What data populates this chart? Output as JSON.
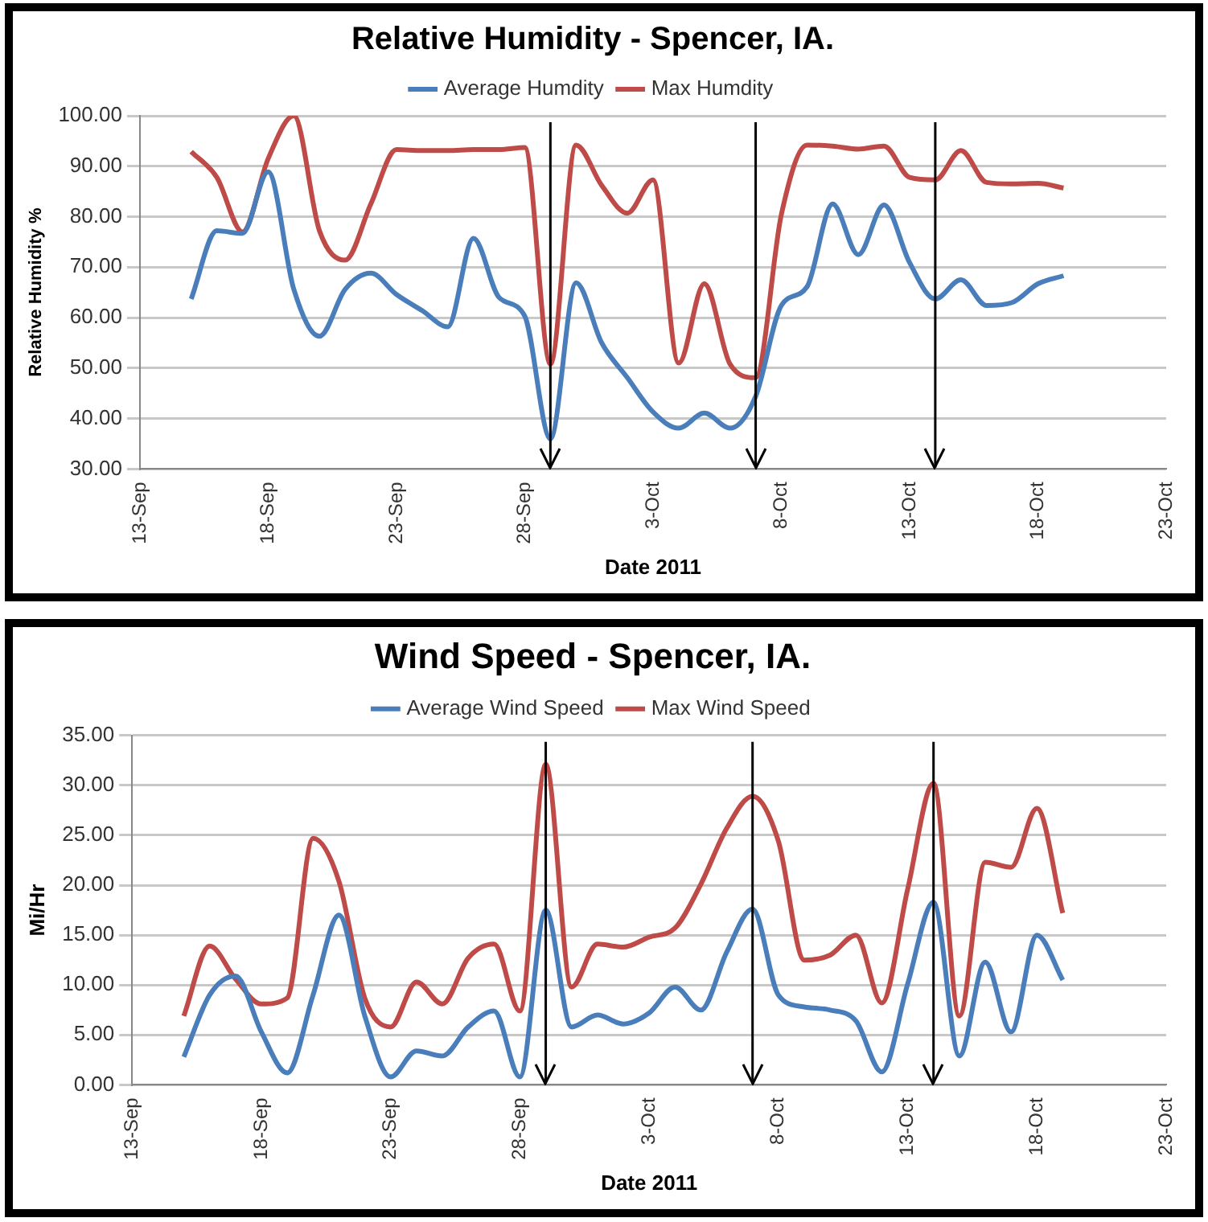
{
  "chart_data": [
    {
      "type": "line",
      "title": "Relative Humidity - Spencer, IA.",
      "xlabel": "Date 2011",
      "ylabel": "Relative Humidity %",
      "x": [
        "2011-09-15",
        "2011-09-16",
        "2011-09-17",
        "2011-09-18",
        "2011-09-19",
        "2011-09-20",
        "2011-09-21",
        "2011-09-22",
        "2011-09-23",
        "2011-09-24",
        "2011-09-25",
        "2011-09-26",
        "2011-09-27",
        "2011-09-28",
        "2011-09-29",
        "2011-09-30",
        "2011-10-01",
        "2011-10-02",
        "2011-10-03",
        "2011-10-04",
        "2011-10-05",
        "2011-10-06",
        "2011-10-07",
        "2011-10-08",
        "2011-10-09",
        "2011-10-10",
        "2011-10-11",
        "2011-10-12",
        "2011-10-13",
        "2011-10-14",
        "2011-10-15",
        "2011-10-16",
        "2011-10-17",
        "2011-10-18",
        "2011-10-19"
      ],
      "series": [
        {
          "name": "Average Humdity",
          "color": "#4a7ebb",
          "values": [
            63.7,
            77.2,
            76.7,
            88.9,
            65.6,
            56.3,
            65.6,
            68.8,
            64.6,
            61.4,
            58.2,
            75.7,
            64.0,
            60.3,
            36.0,
            66.9,
            55.0,
            48.1,
            41.3,
            38.1,
            41.1,
            38.1,
            44.4,
            62.4,
            66.1,
            82.5,
            72.5,
            82.3,
            70.9,
            63.7,
            67.5,
            62.4,
            63.0,
            66.7,
            68.3
          ]
        },
        {
          "name": "Max Humdity",
          "color": "#be4b48",
          "values": [
            92.9,
            87.8,
            77.0,
            91.5,
            100.0,
            77.2,
            71.4,
            82.5,
            93.3,
            93.1,
            93.1,
            93.3,
            93.3,
            93.7,
            50.8,
            94.2,
            86.2,
            80.7,
            87.3,
            51.0,
            66.7,
            50.8,
            48.1,
            80.4,
            94.2,
            94.0,
            93.4,
            94.0,
            87.8,
            87.3,
            93.1,
            86.8,
            86.5,
            86.6,
            85.7
          ]
        }
      ],
      "xlim": [
        "2011-09-13",
        "2011-10-23"
      ],
      "xticks": [
        {
          "value": "2011-09-13",
          "label": "13-Sep"
        },
        {
          "value": "2011-09-18",
          "label": "18-Sep"
        },
        {
          "value": "2011-09-23",
          "label": "23-Sep"
        },
        {
          "value": "2011-09-28",
          "label": "28-Sep"
        },
        {
          "value": "2011-10-03",
          "label": "3-Oct"
        },
        {
          "value": "2011-10-08",
          "label": "8-Oct"
        },
        {
          "value": "2011-10-13",
          "label": "13-Oct"
        },
        {
          "value": "2011-10-18",
          "label": "18-Oct"
        },
        {
          "value": "2011-10-23",
          "label": "23-Oct"
        }
      ],
      "ylim": [
        30,
        100
      ],
      "yticks": [
        {
          "value": 30,
          "label": "30.00"
        },
        {
          "value": 40,
          "label": "40.00"
        },
        {
          "value": 50,
          "label": "50.00"
        },
        {
          "value": 60,
          "label": "60.00"
        },
        {
          "value": 70,
          "label": "70.00"
        },
        {
          "value": 80,
          "label": "80.00"
        },
        {
          "value": 90,
          "label": "90.00"
        },
        {
          "value": 100,
          "label": "100.00"
        }
      ],
      "ref_lines": [
        {
          "axis": "x",
          "value": "2011-09-29",
          "color": "#000000"
        },
        {
          "axis": "x",
          "value": "2011-10-07",
          "color": "#000000"
        },
        {
          "axis": "x",
          "value": "2011-10-14",
          "color": "#000000"
        }
      ],
      "grid": "y",
      "legend": "top",
      "marker": "none",
      "line_style": "solid"
    },
    {
      "type": "line",
      "title": "Wind Speed - Spencer, IA.",
      "xlabel": "Date 2011",
      "ylabel": "Mi/Hr",
      "x": [
        "2011-09-15",
        "2011-09-16",
        "2011-09-17",
        "2011-09-18",
        "2011-09-19",
        "2011-09-20",
        "2011-09-21",
        "2011-09-22",
        "2011-09-23",
        "2011-09-24",
        "2011-09-25",
        "2011-09-26",
        "2011-09-27",
        "2011-09-28",
        "2011-09-29",
        "2011-09-30",
        "2011-10-01",
        "2011-10-02",
        "2011-10-03",
        "2011-10-04",
        "2011-10-05",
        "2011-10-06",
        "2011-10-07",
        "2011-10-08",
        "2011-10-09",
        "2011-10-10",
        "2011-10-11",
        "2011-10-12",
        "2011-10-13",
        "2011-10-14",
        "2011-10-15",
        "2011-10-16",
        "2011-10-17",
        "2011-10-18",
        "2011-10-19"
      ],
      "series": [
        {
          "name": "Average Wind Speed",
          "color": "#4a7ebb",
          "values": [
            2.8,
            9.0,
            10.9,
            5.3,
            1.2,
            9.0,
            17.0,
            6.9,
            0.8,
            3.4,
            2.9,
            5.8,
            7.4,
            0.8,
            17.5,
            5.8,
            7.0,
            6.1,
            7.2,
            9.8,
            7.5,
            13.3,
            17.6,
            9.0,
            7.8,
            7.5,
            6.4,
            1.3,
            10.1,
            18.3,
            2.9,
            12.3,
            5.3,
            15.0,
            10.5
          ]
        },
        {
          "name": "Max Wind Speed",
          "color": "#be4b48",
          "values": [
            6.9,
            13.9,
            10.6,
            8.1,
            8.7,
            24.7,
            20.4,
            8.7,
            5.8,
            10.3,
            8.1,
            12.7,
            14.1,
            7.4,
            32.1,
            9.8,
            14.1,
            13.8,
            14.8,
            15.7,
            20.1,
            25.7,
            28.9,
            24.4,
            12.5,
            13.0,
            15.0,
            8.2,
            19.6,
            30.2,
            6.9,
            22.3,
            21.8,
            27.7,
            17.2
          ]
        }
      ],
      "xlim": [
        "2011-09-13",
        "2011-10-23"
      ],
      "xticks": [
        {
          "value": "2011-09-13",
          "label": "13-Sep"
        },
        {
          "value": "2011-09-18",
          "label": "18-Sep"
        },
        {
          "value": "2011-09-23",
          "label": "23-Sep"
        },
        {
          "value": "2011-09-28",
          "label": "28-Sep"
        },
        {
          "value": "2011-10-03",
          "label": "3-Oct"
        },
        {
          "value": "2011-10-08",
          "label": "8-Oct"
        },
        {
          "value": "2011-10-13",
          "label": "13-Oct"
        },
        {
          "value": "2011-10-18",
          "label": "18-Oct"
        },
        {
          "value": "2011-10-23",
          "label": "23-Oct"
        }
      ],
      "ylim": [
        0,
        35
      ],
      "yticks": [
        {
          "value": 0,
          "label": "0.00"
        },
        {
          "value": 5,
          "label": "5.00"
        },
        {
          "value": 10,
          "label": "10.00"
        },
        {
          "value": 15,
          "label": "15.00"
        },
        {
          "value": 20,
          "label": "20.00"
        },
        {
          "value": 25,
          "label": "25.00"
        },
        {
          "value": 30,
          "label": "30.00"
        },
        {
          "value": 35,
          "label": "35.00"
        }
      ],
      "ref_lines": [
        {
          "axis": "x",
          "value": "2011-09-29",
          "color": "#000000"
        },
        {
          "axis": "x",
          "value": "2011-10-07",
          "color": "#000000"
        },
        {
          "axis": "x",
          "value": "2011-10-14",
          "color": "#000000"
        }
      ],
      "grid": "y",
      "legend": "top",
      "marker": "none",
      "line_style": "solid"
    }
  ]
}
